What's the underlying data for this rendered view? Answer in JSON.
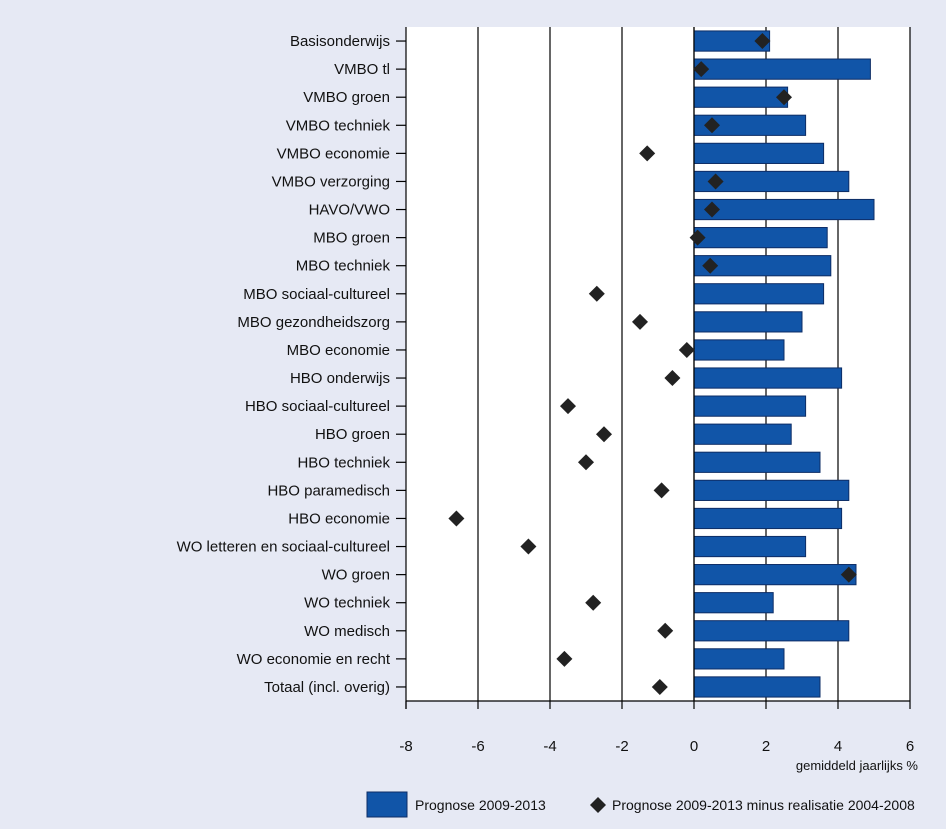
{
  "chart_data": {
    "type": "bar",
    "orientation": "horizontal",
    "categories": [
      "Basisonderwijs",
      "VMBO tl",
      "VMBO groen",
      "VMBO techniek",
      "VMBO economie",
      "VMBO verzorging",
      "HAVO/VWO",
      "MBO groen",
      "MBO techniek",
      "MBO sociaal-cultureel",
      "MBO gezondheidszorg",
      "MBO economie",
      "HBO onderwijs",
      "HBO sociaal-cultureel",
      "HBO groen",
      "HBO techniek",
      "HBO paramedisch",
      "HBO economie",
      "WO letteren en sociaal-cultureel",
      "WO groen",
      "WO techniek",
      "WO medisch",
      "WO economie en recht",
      "Totaal (incl. overig)"
    ],
    "series": [
      {
        "name": "Prognose 2009-2013",
        "kind": "bar",
        "color": "#1155a8",
        "values": [
          2.1,
          4.9,
          2.6,
          3.1,
          3.6,
          4.3,
          5.0,
          3.7,
          3.8,
          3.6,
          3.0,
          2.5,
          4.1,
          3.1,
          2.7,
          3.5,
          4.3,
          4.1,
          3.1,
          4.5,
          2.2,
          4.3,
          2.5,
          3.5
        ]
      },
      {
        "name": "Prognose 2009-2013 minus realisatie 2004-2008",
        "kind": "marker",
        "color": "#222222",
        "values": [
          1.9,
          0.2,
          2.5,
          0.5,
          -1.3,
          0.6,
          0.5,
          0.1,
          0.45,
          -2.7,
          -1.5,
          -0.2,
          -0.6,
          -3.5,
          -2.5,
          -3.0,
          -0.9,
          -6.6,
          -4.6,
          4.3,
          -2.8,
          -0.8,
          -3.6,
          -0.95
        ]
      }
    ],
    "xlim": [
      -8,
      6
    ],
    "xticks": [
      -8,
      -6,
      -4,
      -2,
      0,
      2,
      4,
      6
    ],
    "xlabel": "gemiddeld jaarlijks %",
    "grid": "vertical",
    "legend": "bottom"
  }
}
